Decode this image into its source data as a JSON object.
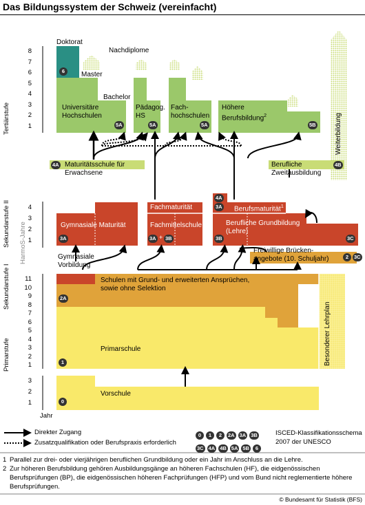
{
  "title": "Das Bildungssystem der Schweiz (vereinfacht)",
  "stages": {
    "tertiaer": "Tertiärstufe",
    "sek2": "Sekundarstufe II",
    "sek1": "Sekundarstufe I",
    "primar": "Primarstufe",
    "harmos": "HarmoS-Jahre"
  },
  "year_label": "Jahr",
  "tertiary_years": [
    "8",
    "7",
    "6",
    "5",
    "4",
    "3",
    "2",
    "1"
  ],
  "sek2_years": [
    "4",
    "3",
    "2",
    "1"
  ],
  "harmos_years": [
    "11",
    "10",
    "9",
    "8",
    "7",
    "6",
    "5",
    "4",
    "3",
    "2",
    "1"
  ],
  "vorschule_years": [
    "3",
    "2",
    "1"
  ],
  "boxes": {
    "doktorat": "Doktorat",
    "nachdiplome": "Nachdiplome",
    "master": "Master",
    "bachelor": "Bachelor",
    "uni": "Universitäre\nHochschulen",
    "paed": "Pädagog.\nHS",
    "fh": "Fach-\nhochschulen",
    "hbb": "Höhere\nBerufsbildung",
    "hbb_sup": "2",
    "weiterbildung": "Weiterbildung",
    "maturitaetsschule": "Maturitätsschule für\nErwachsene",
    "zweitausbildung": "Berufliche\nZweitausbildung",
    "fachmaturitaet": "Fachmaturität",
    "berufsmaturitaet": "Berufsmaturität",
    "berufsmaturitaet_sup": "1",
    "gym": "Gymnasiale Maturität",
    "fms": "Fachmittelschule",
    "grundbildung": "Berufliche Grundbildung\n(Lehre)",
    "gym_vorbildung": "Gymnasiale\nVorbildung",
    "brueckenangebote": "Freiwillige Brücken-\nangebote (10. Schuljahr)",
    "schulen": "Schulen mit Grund- und erweiterten Ansprüchen,\nsowie ohne Selektion",
    "primarschule": "Primarschule",
    "besonderer": "Besonderer Lehrplan",
    "vorschule": "Vorschule"
  },
  "isced_badges": {
    "b6": "6",
    "b5a_uni": "5A",
    "b5a_paed": "5A",
    "b5a_fh": "5A",
    "b5b": "5B",
    "b4a_matschule": "4A",
    "b4b": "4B",
    "b4a_fach": "4A",
    "b3a_fach": "3A",
    "b3a_gym": "3A",
    "b3a_fms": "3A",
    "b3b_fms": "3B",
    "b3b_gb": "3B",
    "b3c_gb": "3C",
    "b2": "2",
    "b3c_br": "3C",
    "b2a": "2A",
    "b1": "1",
    "b0": "0",
    "plus": "+"
  },
  "legend": {
    "direct": "Direkter Zugang",
    "additional": "Zusatzqualifikation oder Berufspraxis erforderlich",
    "isced": "ISCED-Klassifikationsschema\n2007 der UNESCO",
    "badges_row1": [
      "0",
      "1",
      "2",
      "2A",
      "3A",
      "3B"
    ],
    "badges_row2": [
      "3C",
      "4A",
      "4B",
      "5A",
      "5B",
      "6"
    ]
  },
  "notes": [
    {
      "n": "1",
      "text": "Parallel zur drei- oder vierjährigen beruflichen Grundbildung oder ein Jahr im Anschluss an die Lehre."
    },
    {
      "n": "2",
      "text": "Zur höheren Berufsbildung gehören Ausbildungsgänge an höheren Fachschulen (HF), die eidgenössischen Berufsprüfungen (BP), die eidgenössischen höheren Fachprüfungen (HFP) und vom Bund nicht reglementierte höhere Berufsprüfungen."
    }
  ],
  "copyright": "© Bundesamt für Statistik (BFS)",
  "colors": {
    "green": "#9bc86a",
    "lightgreen": "#c9dc76",
    "teal": "#2a8f84",
    "red": "#c9452a",
    "orange": "#e0a33a",
    "yellow": "#f9e96a",
    "badge": "#333333"
  }
}
